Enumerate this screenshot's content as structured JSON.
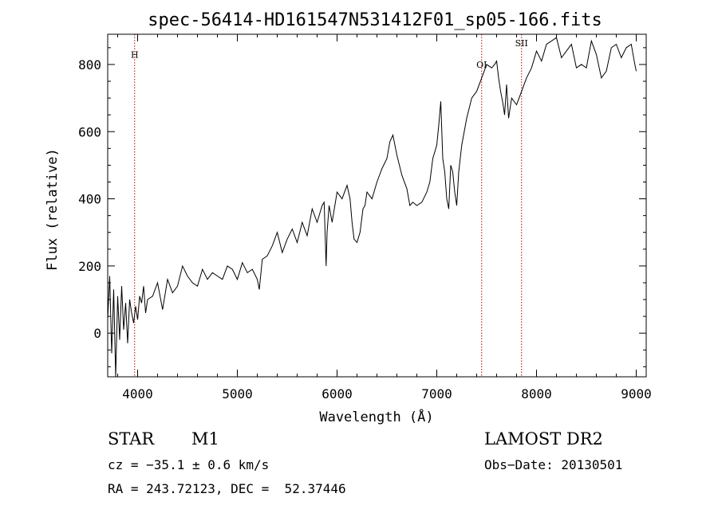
{
  "chart_data": {
    "type": "line",
    "title": "spec-56414-HD161547N531412F01_sp05-166.fits",
    "xlabel": "Wavelength (Å)",
    "ylabel": "Flux (relative)",
    "xlim": [
      3700,
      9100
    ],
    "ylim": [
      -130,
      890
    ],
    "x_ticks": [
      4000,
      5000,
      6000,
      7000,
      8000,
      9000
    ],
    "y_ticks": [
      0,
      200,
      400,
      600,
      800
    ],
    "grid": false,
    "series": [
      {
        "x": [
          3700,
          3720,
          3740,
          3760,
          3780,
          3800,
          3820,
          3840,
          3860,
          3880,
          3900,
          3920,
          3940,
          3960,
          3980,
          4000,
          4020,
          4040,
          4060,
          4080,
          4100,
          4150,
          4200,
          4250,
          4300,
          4350,
          4400,
          4450,
          4500,
          4550,
          4600,
          4650,
          4700,
          4750,
          4800,
          4850,
          4900,
          4950,
          5000,
          5050,
          5100,
          5150,
          5200,
          5220,
          5250,
          5300,
          5350,
          5400,
          5450,
          5500,
          5550,
          5600,
          5650,
          5700,
          5750,
          5800,
          5850,
          5870,
          5890,
          5900,
          5920,
          5950,
          6000,
          6050,
          6100,
          6130,
          6150,
          6170,
          6200,
          6230,
          6260,
          6280,
          6300,
          6350,
          6400,
          6450,
          6500,
          6530,
          6560,
          6600,
          6650,
          6700,
          6730,
          6760,
          6800,
          6850,
          6900,
          6930,
          6960,
          7000,
          7020,
          7040,
          7060,
          7080,
          7100,
          7120,
          7140,
          7160,
          7180,
          7200,
          7220,
          7250,
          7300,
          7350,
          7400,
          7450,
          7500,
          7550,
          7580,
          7600,
          7620,
          7640,
          7660,
          7680,
          7700,
          7720,
          7750,
          7800,
          7850,
          7900,
          7950,
          8000,
          8050,
          8100,
          8150,
          8200,
          8250,
          8300,
          8350,
          8400,
          8450,
          8500,
          8550,
          8600,
          8650,
          8700,
          8750,
          8800,
          8850,
          8900,
          8950,
          8980,
          9000
        ],
        "values": [
          40,
          170,
          -60,
          130,
          -130,
          110,
          -20,
          140,
          10,
          90,
          -30,
          100,
          60,
          30,
          80,
          40,
          110,
          90,
          140,
          60,
          100,
          110,
          150,
          70,
          160,
          120,
          140,
          200,
          170,
          150,
          140,
          190,
          160,
          180,
          170,
          160,
          200,
          190,
          160,
          210,
          180,
          190,
          160,
          130,
          220,
          230,
          260,
          300,
          240,
          280,
          310,
          270,
          330,
          290,
          370,
          330,
          380,
          390,
          200,
          300,
          380,
          330,
          420,
          400,
          440,
          400,
          330,
          280,
          270,
          300,
          370,
          380,
          420,
          400,
          450,
          490,
          520,
          570,
          590,
          530,
          470,
          430,
          380,
          390,
          380,
          390,
          420,
          450,
          520,
          560,
          620,
          690,
          520,
          480,
          400,
          370,
          500,
          480,
          420,
          380,
          480,
          560,
          640,
          700,
          720,
          760,
          800,
          790,
          800,
          810,
          760,
          720,
          690,
          650,
          740,
          640,
          700,
          680,
          720,
          760,
          790,
          840,
          810,
          860,
          870,
          880,
          820,
          840,
          860,
          790,
          800,
          790,
          870,
          830,
          760,
          780,
          850,
          860,
          820,
          850,
          860,
          810,
          780
        ]
      }
    ],
    "line_ids": [
      {
        "label": "H",
        "x": 3970,
        "y": 820
      },
      {
        "label": "OI",
        "x": 7450,
        "y": 790
      },
      {
        "label": "SII",
        "x": 7850,
        "y": 855
      }
    ]
  },
  "info": {
    "object_class": "STAR",
    "subclass": "M1",
    "cz": "cz = −35.1 ± 0.6 km/s",
    "coords": "RA = 243.72123, DEC =  52.37446",
    "survey": "LAMOST DR2",
    "obs_date": "Obs−Date: 20130501"
  }
}
